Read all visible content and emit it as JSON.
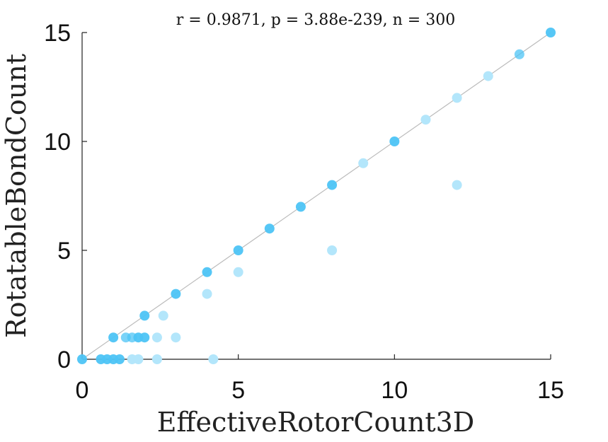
{
  "chart_data": {
    "type": "scatter",
    "title": "r = 0.9871, p = 3.88e-239, n = 300",
    "xlabel": "EffectiveRotorCount3D",
    "ylabel": "RotatableBondCount",
    "xlim": [
      0,
      15
    ],
    "ylim": [
      0,
      15
    ],
    "xticks": [
      "0",
      "5",
      "10",
      "15"
    ],
    "yticks": [
      "0",
      "5",
      "10",
      "15"
    ],
    "reference_line": {
      "from": [
        0,
        0
      ],
      "to": [
        15,
        15
      ],
      "color": "#bbbbbb"
    },
    "grid": false,
    "point_color": "#4dc4f5",
    "point_color_light": "#b3e6fb",
    "points_dark": [
      {
        "x": 0,
        "y": 0
      },
      {
        "x": 0.6,
        "y": 0
      },
      {
        "x": 0.8,
        "y": 0
      },
      {
        "x": 1.0,
        "y": 0
      },
      {
        "x": 1.2,
        "y": 0
      },
      {
        "x": 1.0,
        "y": 1
      },
      {
        "x": 1.8,
        "y": 1
      },
      {
        "x": 2.0,
        "y": 1
      },
      {
        "x": 2.0,
        "y": 2
      },
      {
        "x": 3,
        "y": 3
      },
      {
        "x": 4,
        "y": 4
      },
      {
        "x": 5,
        "y": 5
      },
      {
        "x": 6,
        "y": 6
      },
      {
        "x": 7,
        "y": 7
      },
      {
        "x": 8,
        "y": 8
      },
      {
        "x": 10,
        "y": 10
      },
      {
        "x": 15,
        "y": 15
      }
    ],
    "points_medium": [
      {
        "x": 1.4,
        "y": 1
      },
      {
        "x": 1.6,
        "y": 1
      },
      {
        "x": 14,
        "y": 14
      }
    ],
    "points_light": [
      {
        "x": 1.6,
        "y": 0
      },
      {
        "x": 1.8,
        "y": 0
      },
      {
        "x": 2.4,
        "y": 0
      },
      {
        "x": 4.2,
        "y": 0
      },
      {
        "x": 2.4,
        "y": 1
      },
      {
        "x": 3.0,
        "y": 1
      },
      {
        "x": 2.6,
        "y": 2
      },
      {
        "x": 4,
        "y": 3
      },
      {
        "x": 5,
        "y": 4
      },
      {
        "x": 8,
        "y": 5
      },
      {
        "x": 12,
        "y": 8
      },
      {
        "x": 9,
        "y": 9
      },
      {
        "x": 11,
        "y": 11
      },
      {
        "x": 12,
        "y": 12
      },
      {
        "x": 13,
        "y": 13
      }
    ]
  }
}
